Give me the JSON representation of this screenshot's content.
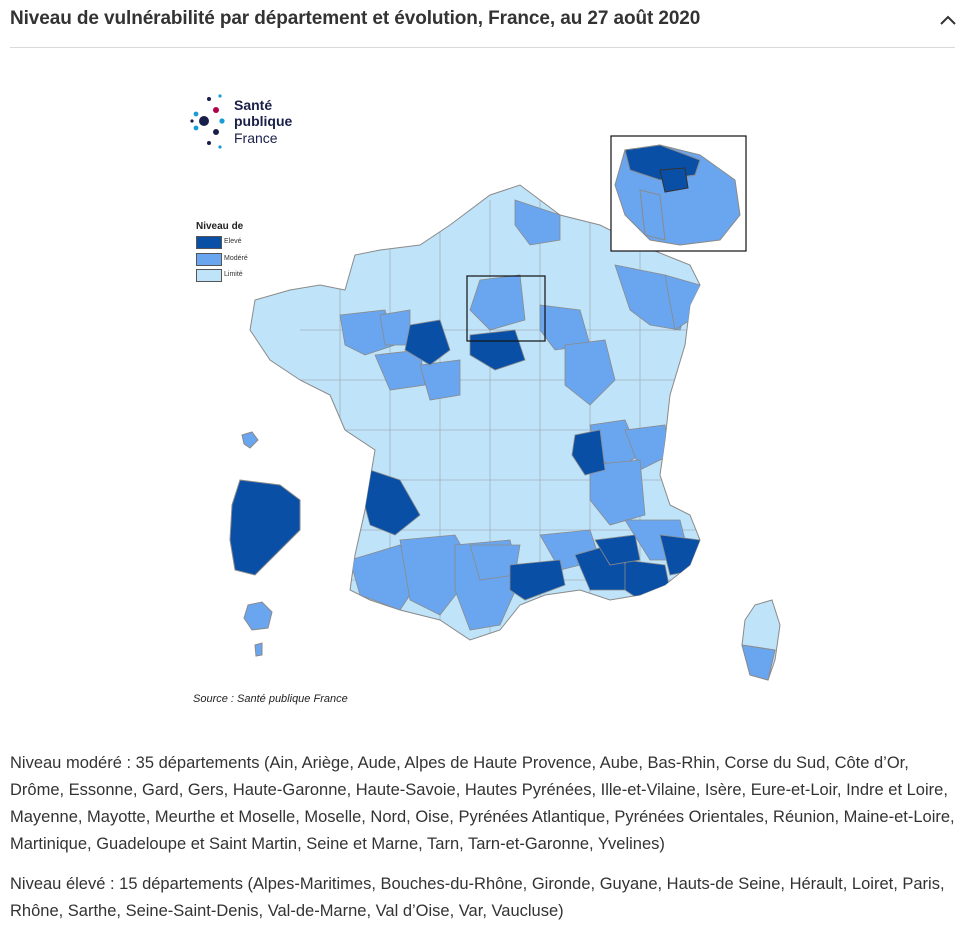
{
  "header": {
    "title": "Niveau de vulnérabilité par département et évolution, France, au 27 août 2020",
    "collapse_icon": "chevron-up-icon"
  },
  "logo": {
    "line1": "Santé",
    "line2": "publique",
    "line3": "France"
  },
  "legend": {
    "title": "Niveau de",
    "items": [
      {
        "label": "Elevé",
        "color": "#0a4fa6"
      },
      {
        "label": "Modéré",
        "color": "#6aa6ef"
      },
      {
        "label": "Limité",
        "color": "#bfe3f8"
      }
    ]
  },
  "source": "Source : Santé publique France",
  "descriptions": {
    "moderate": "Niveau modéré : 35 départements (Ain, Ariège, Aude, Alpes de Haute Provence, Aube, Bas-Rhin, Corse du Sud, Côte d’Or, Drôme, Essonne, Gard, Gers, Haute-Garonne, Haute-Savoie, Hautes Pyrénées, Ille-et-Vilaine, Isère, Eure-et-Loir, Indre et Loire, Mayenne, Mayotte, Meurthe et Moselle, Moselle, Nord, Oise, Pyrénées Atlantique, Pyrénées Orientales, Réunion, Maine-et-Loire, Martinique, Guadeloupe et Saint Martin, Seine et Marne, Tarn, Tarn-et-Garonne, Yvelines)",
    "high": "Niveau élevé : 15 départements (Alpes-Maritimes, Bouches-du-Rhône, Gironde, Guyane, Hauts-de Seine, Hérault, Loiret, Paris, Rhône, Sarthe, Seine-Saint-Denis, Val-de-Marne, Val d’Oise, Var, Vaucluse)"
  }
}
